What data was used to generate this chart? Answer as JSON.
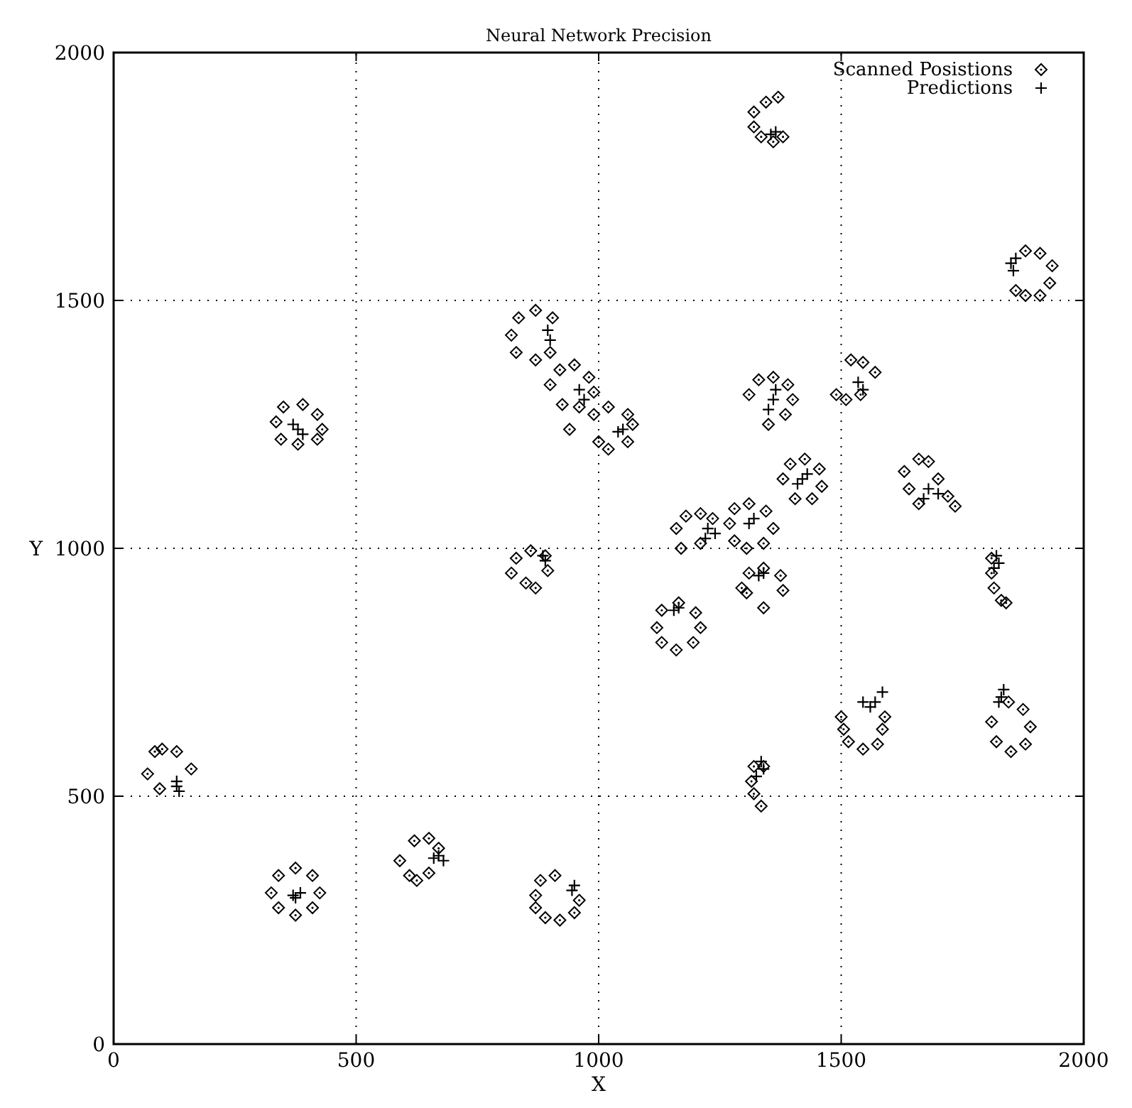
{
  "chart_data": {
    "type": "scatter",
    "title": "Neural Network Precision",
    "xlabel": "X",
    "ylabel": "Y",
    "xlim": [
      0,
      2000
    ],
    "ylim": [
      0,
      2000
    ],
    "xticks": [
      0,
      500,
      1000,
      1500,
      2000
    ],
    "yticks": [
      0,
      500,
      1000,
      1500,
      2000
    ],
    "grid": true,
    "legend": "top right",
    "series": [
      {
        "name": "Scanned Posistions",
        "color": "#000000",
        "marker": "diamond",
        "x": [
          70,
          85,
          100,
          130,
          160,
          95,
          325,
          340,
          375,
          410,
          425,
          410,
          375,
          340,
          620,
          650,
          670,
          650,
          625,
          610,
          590,
          870,
          880,
          910,
          870,
          890,
          920,
          950,
          960,
          335,
          350,
          390,
          420,
          430,
          420,
          380,
          345,
          820,
          835,
          870,
          905,
          900,
          870,
          830,
          900,
          920,
          950,
          980,
          990,
          960,
          925,
          990,
          1020,
          1060,
          1070,
          1060,
          1020,
          1000,
          940,
          1370,
          1345,
          1320,
          1320,
          1335,
          1360,
          1380,
          1860,
          1880,
          1910,
          1930,
          1935,
          1910,
          1880,
          1310,
          1330,
          1360,
          1390,
          1400,
          1385,
          1350,
          1490,
          1510,
          1540,
          1520,
          1545,
          1570,
          1380,
          1395,
          1425,
          1455,
          1460,
          1440,
          1405,
          1630,
          1640,
          1660,
          1700,
          1720,
          1735,
          1660,
          1680,
          1270,
          1280,
          1310,
          1345,
          1360,
          1340,
          1305,
          1280,
          1160,
          1180,
          1210,
          1235,
          1170,
          1210,
          1120,
          1130,
          1165,
          1200,
          1210,
          1195,
          1160,
          1130,
          1295,
          1310,
          1340,
          1375,
          1380,
          1340,
          1305,
          820,
          830,
          860,
          890,
          895,
          870,
          850,
          1810,
          1810,
          1815,
          1830,
          1840,
          1320,
          1315,
          1320,
          1335,
          1340,
          1500,
          1505,
          1515,
          1545,
          1575,
          1585,
          1590,
          1810,
          1820,
          1850,
          1880,
          1890,
          1875,
          1845
        ],
        "values": [
          545,
          590,
          595,
          590,
          555,
          515,
          305,
          340,
          355,
          340,
          305,
          275,
          260,
          275,
          410,
          415,
          395,
          345,
          330,
          340,
          370,
          300,
          330,
          340,
          275,
          255,
          250,
          265,
          290,
          1255,
          1285,
          1290,
          1270,
          1240,
          1220,
          1210,
          1220,
          1430,
          1465,
          1480,
          1465,
          1395,
          1380,
          1395,
          1330,
          1360,
          1370,
          1345,
          1315,
          1285,
          1290,
          1270,
          1285,
          1270,
          1250,
          1215,
          1200,
          1215,
          1240,
          1910,
          1900,
          1880,
          1850,
          1830,
          1820,
          1830,
          1520,
          1510,
          1510,
          1535,
          1570,
          1595,
          1600,
          1310,
          1340,
          1345,
          1330,
          1300,
          1270,
          1250,
          1310,
          1300,
          1310,
          1380,
          1375,
          1355,
          1140,
          1170,
          1180,
          1160,
          1125,
          1100,
          1100,
          1155,
          1120,
          1090,
          1140,
          1105,
          1085,
          1180,
          1175,
          1050,
          1080,
          1090,
          1075,
          1040,
          1010,
          1000,
          1015,
          1040,
          1065,
          1070,
          1060,
          1000,
          1010,
          840,
          875,
          890,
          870,
          840,
          810,
          795,
          810,
          920,
          950,
          960,
          945,
          915,
          880,
          910,
          950,
          980,
          995,
          985,
          955,
          920,
          930,
          980,
          950,
          920,
          895,
          890,
          560,
          530,
          505,
          480,
          560,
          660,
          635,
          610,
          595,
          605,
          635,
          660,
          650,
          610,
          590,
          605,
          640,
          675,
          690
        ]
      },
      {
        "name": "Predictions",
        "color": "#000000",
        "marker": "cross",
        "x": [
          130,
          135,
          130,
          370,
          385,
          375,
          660,
          680,
          670,
          945,
          950,
          380,
          390,
          370,
          895,
          900,
          960,
          970,
          1040,
          1050,
          1365,
          1355,
          1850,
          1855,
          1860,
          1360,
          1350,
          1365,
          1535,
          1545,
          1420,
          1410,
          1430,
          1680,
          1700,
          1670,
          1310,
          1320,
          1225,
          1220,
          1240,
          1165,
          1155,
          1340,
          1330,
          885,
          890,
          1820,
          1825,
          1815,
          1335,
          1340,
          1325,
          1545,
          1570,
          1585,
          1560,
          1830,
          1835,
          1825
        ],
        "values": [
          520,
          510,
          530,
          300,
          305,
          295,
          375,
          370,
          380,
          310,
          320,
          1240,
          1230,
          1250,
          1440,
          1420,
          1320,
          1300,
          1235,
          1240,
          1840,
          1835,
          1575,
          1560,
          1585,
          1300,
          1280,
          1320,
          1335,
          1320,
          1140,
          1130,
          1150,
          1120,
          1110,
          1100,
          1050,
          1060,
          1040,
          1020,
          1030,
          880,
          875,
          950,
          945,
          985,
          975,
          985,
          970,
          960,
          570,
          555,
          540,
          690,
          690,
          710,
          680,
          700,
          715,
          690
        ]
      }
    ]
  }
}
